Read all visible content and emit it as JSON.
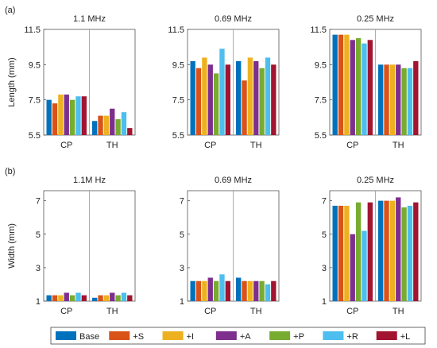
{
  "figure": {
    "panel_labels": [
      "(a)",
      "(b)"
    ],
    "legend": {
      "placement": "bottom",
      "entries": [
        {
          "label": "Base",
          "color": "#0072BD"
        },
        {
          "label": "+S",
          "color": "#D95319"
        },
        {
          "label": "+I",
          "color": "#EDB120"
        },
        {
          "label": "+A",
          "color": "#7E2F8E"
        },
        {
          "label": "+P",
          "color": "#77AC30"
        },
        {
          "label": "+R",
          "color": "#4DBEEE"
        },
        {
          "label": "+L",
          "color": "#A2142F"
        }
      ]
    }
  },
  "chart_data": [
    {
      "type": "bar",
      "row": "(a)",
      "title": "1.1 MHz",
      "ylabel": "Length (mm)",
      "ylim": [
        5.5,
        11.5
      ],
      "yticks": [
        "5.5",
        "7.5",
        "9.5",
        "11.5"
      ],
      "categories": [
        "CP",
        "TH"
      ],
      "series": [
        {
          "name": "Base",
          "values": [
            7.5,
            6.3
          ]
        },
        {
          "name": "+S",
          "values": [
            7.3,
            6.6
          ]
        },
        {
          "name": "+I",
          "values": [
            7.8,
            6.6
          ]
        },
        {
          "name": "+A",
          "values": [
            7.8,
            7.0
          ]
        },
        {
          "name": "+P",
          "values": [
            7.5,
            6.4
          ]
        },
        {
          "name": "+R",
          "values": [
            7.7,
            6.8
          ]
        },
        {
          "name": "+L",
          "values": [
            7.7,
            5.9
          ]
        }
      ]
    },
    {
      "type": "bar",
      "row": "(a)",
      "title": "0.69 MHz",
      "ylabel": "",
      "ylim": [
        5.5,
        11.5
      ],
      "yticks": [
        "5.5",
        "7.5",
        "9.5",
        "11.5"
      ],
      "categories": [
        "CP",
        "TH"
      ],
      "series": [
        {
          "name": "Base",
          "values": [
            9.7,
            9.7
          ]
        },
        {
          "name": "+S",
          "values": [
            9.3,
            8.6
          ]
        },
        {
          "name": "+I",
          "values": [
            9.9,
            9.9
          ]
        },
        {
          "name": "+A",
          "values": [
            9.5,
            9.7
          ]
        },
        {
          "name": "+P",
          "values": [
            9.0,
            9.3
          ]
        },
        {
          "name": "+R",
          "values": [
            10.4,
            9.9
          ]
        },
        {
          "name": "+L",
          "values": [
            9.5,
            9.5
          ]
        }
      ]
    },
    {
      "type": "bar",
      "row": "(a)",
      "title": "0.25 MHz",
      "ylabel": "",
      "ylim": [
        5.5,
        11.5
      ],
      "yticks": [
        "5.5",
        "7.5",
        "9.5",
        "11.5"
      ],
      "categories": [
        "CP",
        "TH"
      ],
      "series": [
        {
          "name": "Base",
          "values": [
            11.2,
            9.5
          ]
        },
        {
          "name": "+S",
          "values": [
            11.2,
            9.5
          ]
        },
        {
          "name": "+I",
          "values": [
            11.2,
            9.5
          ]
        },
        {
          "name": "+A",
          "values": [
            10.9,
            9.5
          ]
        },
        {
          "name": "+P",
          "values": [
            11.0,
            9.3
          ]
        },
        {
          "name": "+R",
          "values": [
            10.7,
            9.3
          ]
        },
        {
          "name": "+L",
          "values": [
            10.9,
            9.7
          ]
        }
      ]
    },
    {
      "type": "bar",
      "row": "(b)",
      "title": "1.1M Hz",
      "ylabel": "Width (mm)",
      "ylim": [
        1,
        7.6
      ],
      "yticks": [
        "1",
        "3",
        "5",
        "7"
      ],
      "categories": [
        "CP",
        "TH"
      ],
      "series": [
        {
          "name": "Base",
          "values": [
            1.35,
            1.2
          ]
        },
        {
          "name": "+S",
          "values": [
            1.35,
            1.35
          ]
        },
        {
          "name": "+I",
          "values": [
            1.35,
            1.35
          ]
        },
        {
          "name": "+A",
          "values": [
            1.5,
            1.5
          ]
        },
        {
          "name": "+P",
          "values": [
            1.35,
            1.35
          ]
        },
        {
          "name": "+R",
          "values": [
            1.5,
            1.5
          ]
        },
        {
          "name": "+L",
          "values": [
            1.35,
            1.35
          ]
        }
      ]
    },
    {
      "type": "bar",
      "row": "(b)",
      "title": "0.69 MHz",
      "ylabel": "",
      "ylim": [
        1,
        7.6
      ],
      "yticks": [
        "1",
        "3",
        "5",
        "7"
      ],
      "categories": [
        "CP",
        "TH"
      ],
      "series": [
        {
          "name": "Base",
          "values": [
            2.2,
            2.4
          ]
        },
        {
          "name": "+S",
          "values": [
            2.2,
            2.2
          ]
        },
        {
          "name": "+I",
          "values": [
            2.2,
            2.2
          ]
        },
        {
          "name": "+A",
          "values": [
            2.4,
            2.2
          ]
        },
        {
          "name": "+P",
          "values": [
            2.2,
            2.2
          ]
        },
        {
          "name": "+R",
          "values": [
            2.6,
            2.0
          ]
        },
        {
          "name": "+L",
          "values": [
            2.2,
            2.2
          ]
        }
      ]
    },
    {
      "type": "bar",
      "row": "(b)",
      "title": "0.25 MHz",
      "ylabel": "",
      "ylim": [
        1,
        7.6
      ],
      "yticks": [
        "1",
        "3",
        "5",
        "7"
      ],
      "categories": [
        "CP",
        "TH"
      ],
      "series": [
        {
          "name": "Base",
          "values": [
            6.7,
            7.0
          ]
        },
        {
          "name": "+S",
          "values": [
            6.7,
            7.0
          ]
        },
        {
          "name": "+I",
          "values": [
            6.7,
            7.0
          ]
        },
        {
          "name": "+A",
          "values": [
            5.0,
            7.2
          ]
        },
        {
          "name": "+P",
          "values": [
            6.9,
            6.6
          ]
        },
        {
          "name": "+R",
          "values": [
            5.2,
            6.7
          ]
        },
        {
          "name": "+L",
          "values": [
            6.9,
            6.9
          ]
        }
      ]
    }
  ]
}
